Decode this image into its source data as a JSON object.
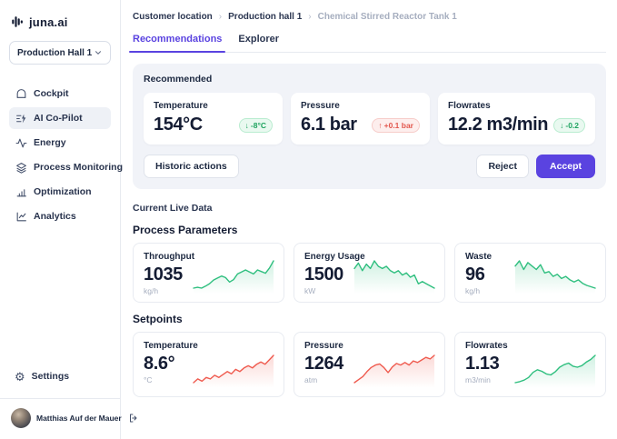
{
  "colors": {
    "accent": "#5a43e0",
    "green": "#2fbf7f",
    "red": "#ef5a4e"
  },
  "brand": {
    "name": "juna.ai"
  },
  "sidebar": {
    "location_selector": {
      "value": "Production Hall 1"
    },
    "items": [
      {
        "label": "Cockpit",
        "icon": "cockpit-icon",
        "active": false
      },
      {
        "label": "AI Co-Pilot",
        "icon": "ai-copilot-icon",
        "active": true
      },
      {
        "label": "Energy",
        "icon": "energy-icon",
        "active": false
      },
      {
        "label": "Process Monitoring",
        "icon": "process-monitoring-icon",
        "active": false
      },
      {
        "label": "Optimization",
        "icon": "optimization-icon",
        "active": false
      },
      {
        "label": "Analytics",
        "icon": "analytics-icon",
        "active": false
      }
    ],
    "settings_label": "Settings",
    "user": {
      "name": "Matthias Auf der Mauer"
    }
  },
  "breadcrumb": {
    "separator": "›",
    "items": [
      "Customer location",
      "Production hall 1",
      "Chemical Stirred Reactor Tank 1"
    ]
  },
  "tabs": [
    {
      "label": "Recommendations",
      "active": true
    },
    {
      "label": "Explorer",
      "active": false
    }
  ],
  "recommended": {
    "title": "Recommended",
    "cards": [
      {
        "label": "Temperature",
        "value": "154°C",
        "arrow": "↓",
        "delta": "-8°C",
        "tone": "green"
      },
      {
        "label": "Pressure",
        "value": "6.1 bar",
        "arrow": "↑",
        "delta": "+0.1 bar",
        "tone": "red"
      },
      {
        "label": "Flowrates",
        "value": "12.2 m3/min",
        "arrow": "↓",
        "delta": "-0.2",
        "tone": "green"
      }
    ],
    "historic_button": "Historic actions",
    "reject_button": "Reject",
    "accept_button": "Accept"
  },
  "live_data": {
    "title": "Current Live Data",
    "sections": [
      {
        "title": "Process Parameters",
        "cards": [
          {
            "label": "Throughput",
            "value": "1035",
            "unit": "kg/h",
            "spark": {
              "color": "#2fbf7f",
              "points": [
                2,
                2.4,
                2,
                3,
                4.2,
                6,
                7,
                8,
                7.2,
                5,
                6.2,
                9,
                10,
                11,
                10,
                9,
                11,
                10.2,
                9.4,
                12,
                15.5
              ]
            }
          },
          {
            "label": "Energy Usage",
            "value": "1500",
            "unit": "kW",
            "spark": {
              "color": "#2fbf7f",
              "points": [
                12,
                14.5,
                11,
                14,
                12,
                15.5,
                13,
                12,
                13,
                11,
                10,
                11,
                9,
                10,
                8,
                9,
                5,
                6,
                5,
                4,
                3
              ]
            }
          },
          {
            "label": "Waste",
            "value": "96",
            "unit": "kg/h",
            "spark": {
              "color": "#2fbf7f",
              "points": [
                12,
                13.5,
                11,
                13,
                12,
                11,
                12.4,
                10,
                10.4,
                9,
                9.6,
                8.4,
                9,
                8,
                7.4,
                8,
                7,
                6.4,
                6,
                5.6
              ]
            }
          }
        ]
      },
      {
        "title": "Setpoints",
        "cards": [
          {
            "label": "Temperature",
            "value": "8.6°",
            "unit": "°C",
            "spark": {
              "color": "#ef5a4e",
              "points": [
                2,
                3,
                2.4,
                3.4,
                3,
                4,
                3.4,
                4.2,
                5,
                4.4,
                5.6,
                5,
                6,
                6.6,
                6,
                7,
                7.6,
                7,
                8.2,
                9.4
              ]
            }
          },
          {
            "label": "Pressure",
            "value": "1264",
            "unit": "atm",
            "spark": {
              "color": "#ef5a4e",
              "points": [
                2,
                3.2,
                4.4,
                6.4,
                8,
                9,
                9.4,
                8,
                6,
                8.2,
                9.6,
                9,
                10,
                9,
                10.6,
                10,
                11,
                12,
                11.4,
                12.8
              ]
            }
          },
          {
            "label": "Flowrates",
            "value": "1.13",
            "unit": "m3/min",
            "spark": {
              "color": "#2fbf7f",
              "points": [
                2,
                2.4,
                3,
                4,
                6,
                7,
                6.4,
                5.4,
                5,
                6.2,
                8,
                9,
                9.6,
                8.4,
                8,
                8.6,
                10,
                11,
                12.6
              ]
            }
          }
        ]
      }
    ]
  }
}
